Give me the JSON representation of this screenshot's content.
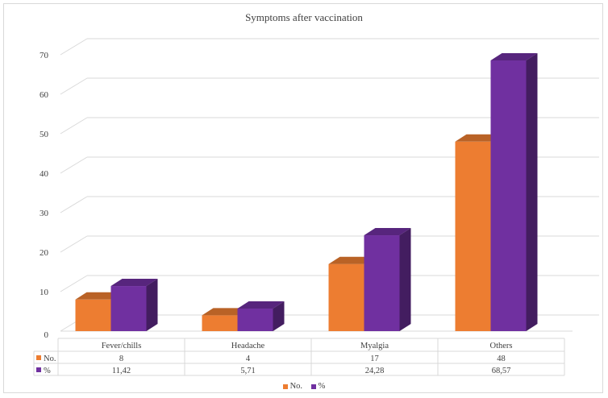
{
  "chart_data": {
    "type": "bar",
    "title": "Symptoms after vaccination",
    "categories": [
      "Fever/chills",
      "Headache",
      "Myalgia",
      "Others"
    ],
    "series": [
      {
        "name": "No.",
        "values": [
          8,
          4,
          17,
          48
        ],
        "labels": [
          "8",
          "4",
          "17",
          "48"
        ],
        "color": "#ed7d31"
      },
      {
        "name": "%",
        "values": [
          11.42,
          5.71,
          24.28,
          68.57
        ],
        "labels": [
          "11,42",
          "5,71",
          "24,28",
          "68,57"
        ],
        "color": "#7030a0"
      }
    ],
    "yticks": [
      "0",
      "10",
      "20",
      "30",
      "40",
      "50",
      "60",
      "70"
    ],
    "ylim": [
      0,
      70
    ],
    "grid": true,
    "legend_position": "bottom",
    "data_table": true
  }
}
